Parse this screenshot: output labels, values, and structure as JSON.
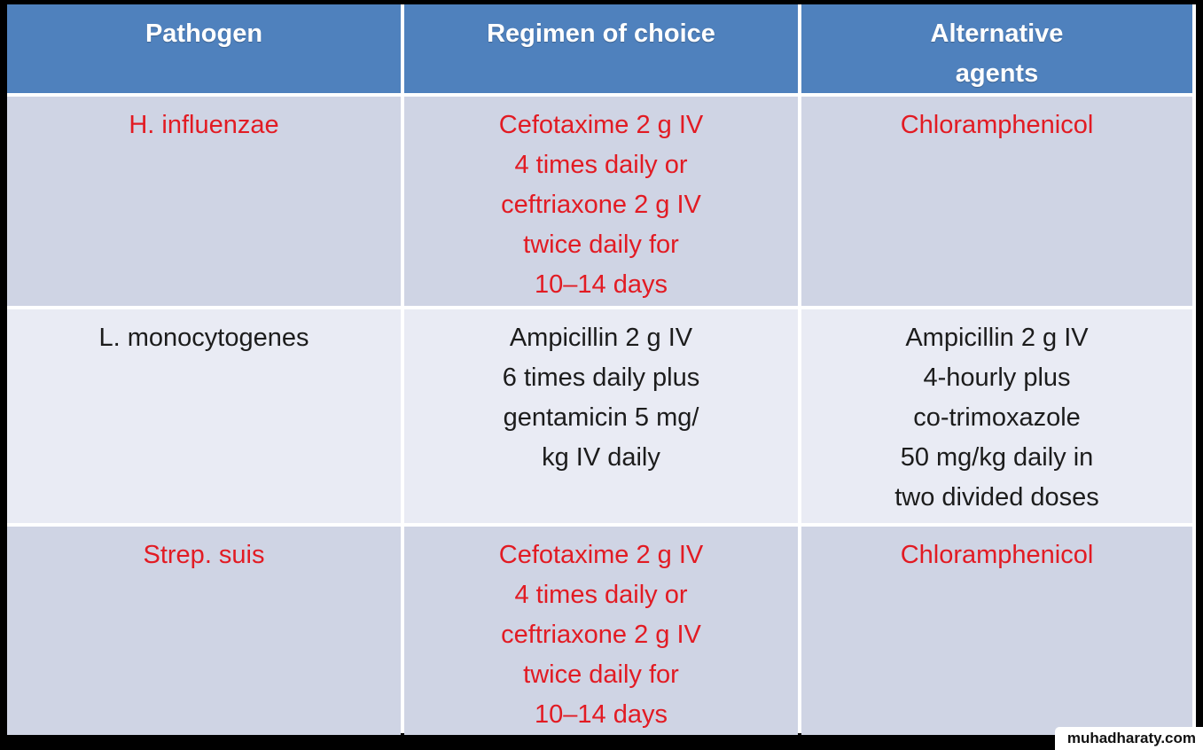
{
  "page": {
    "canvas_bg": "#000000",
    "watermark_text": "muhadharaty.com",
    "watermark_bg": "#ffffff",
    "watermark_fg": "#111111"
  },
  "table": {
    "colors": {
      "header_bg": "#4f81bd",
      "header_fg": "#ffffff",
      "row_dark": "#cfd4e4",
      "row_light": "#e9ebf4",
      "accent_red": "#e21b23",
      "body_black": "#1c1c1c",
      "border": "#ffffff"
    },
    "headers": {
      "pathogen": "Pathogen",
      "regimen": "Regimen of choice",
      "alternative": "Alternative\nagents"
    },
    "rows": [
      {
        "pathogen": "H. influenzae",
        "regimen": "Cefotaxime 2 g IV\n4 times daily or\nceftriaxone 2 g IV\ntwice daily for\n10–14 days",
        "alternative": "Chloramphenicol",
        "text_color": "red",
        "shade": "dark"
      },
      {
        "pathogen": "L. monocytogenes",
        "regimen": "Ampicillin 2 g IV\n6 times daily plus\ngentamicin 5 mg/\nkg IV daily",
        "alternative": "Ampicillin 2 g IV\n4-hourly plus\nco-trimoxazole\n50 mg/kg daily in\ntwo divided doses",
        "text_color": "black",
        "shade": "light"
      },
      {
        "pathogen": "Strep. suis",
        "regimen": "Cefotaxime 2 g IV\n4 times daily or\nceftriaxone 2 g IV\ntwice daily for\n10–14 days",
        "alternative": "Chloramphenicol",
        "text_color": "red",
        "shade": "dark"
      }
    ]
  }
}
